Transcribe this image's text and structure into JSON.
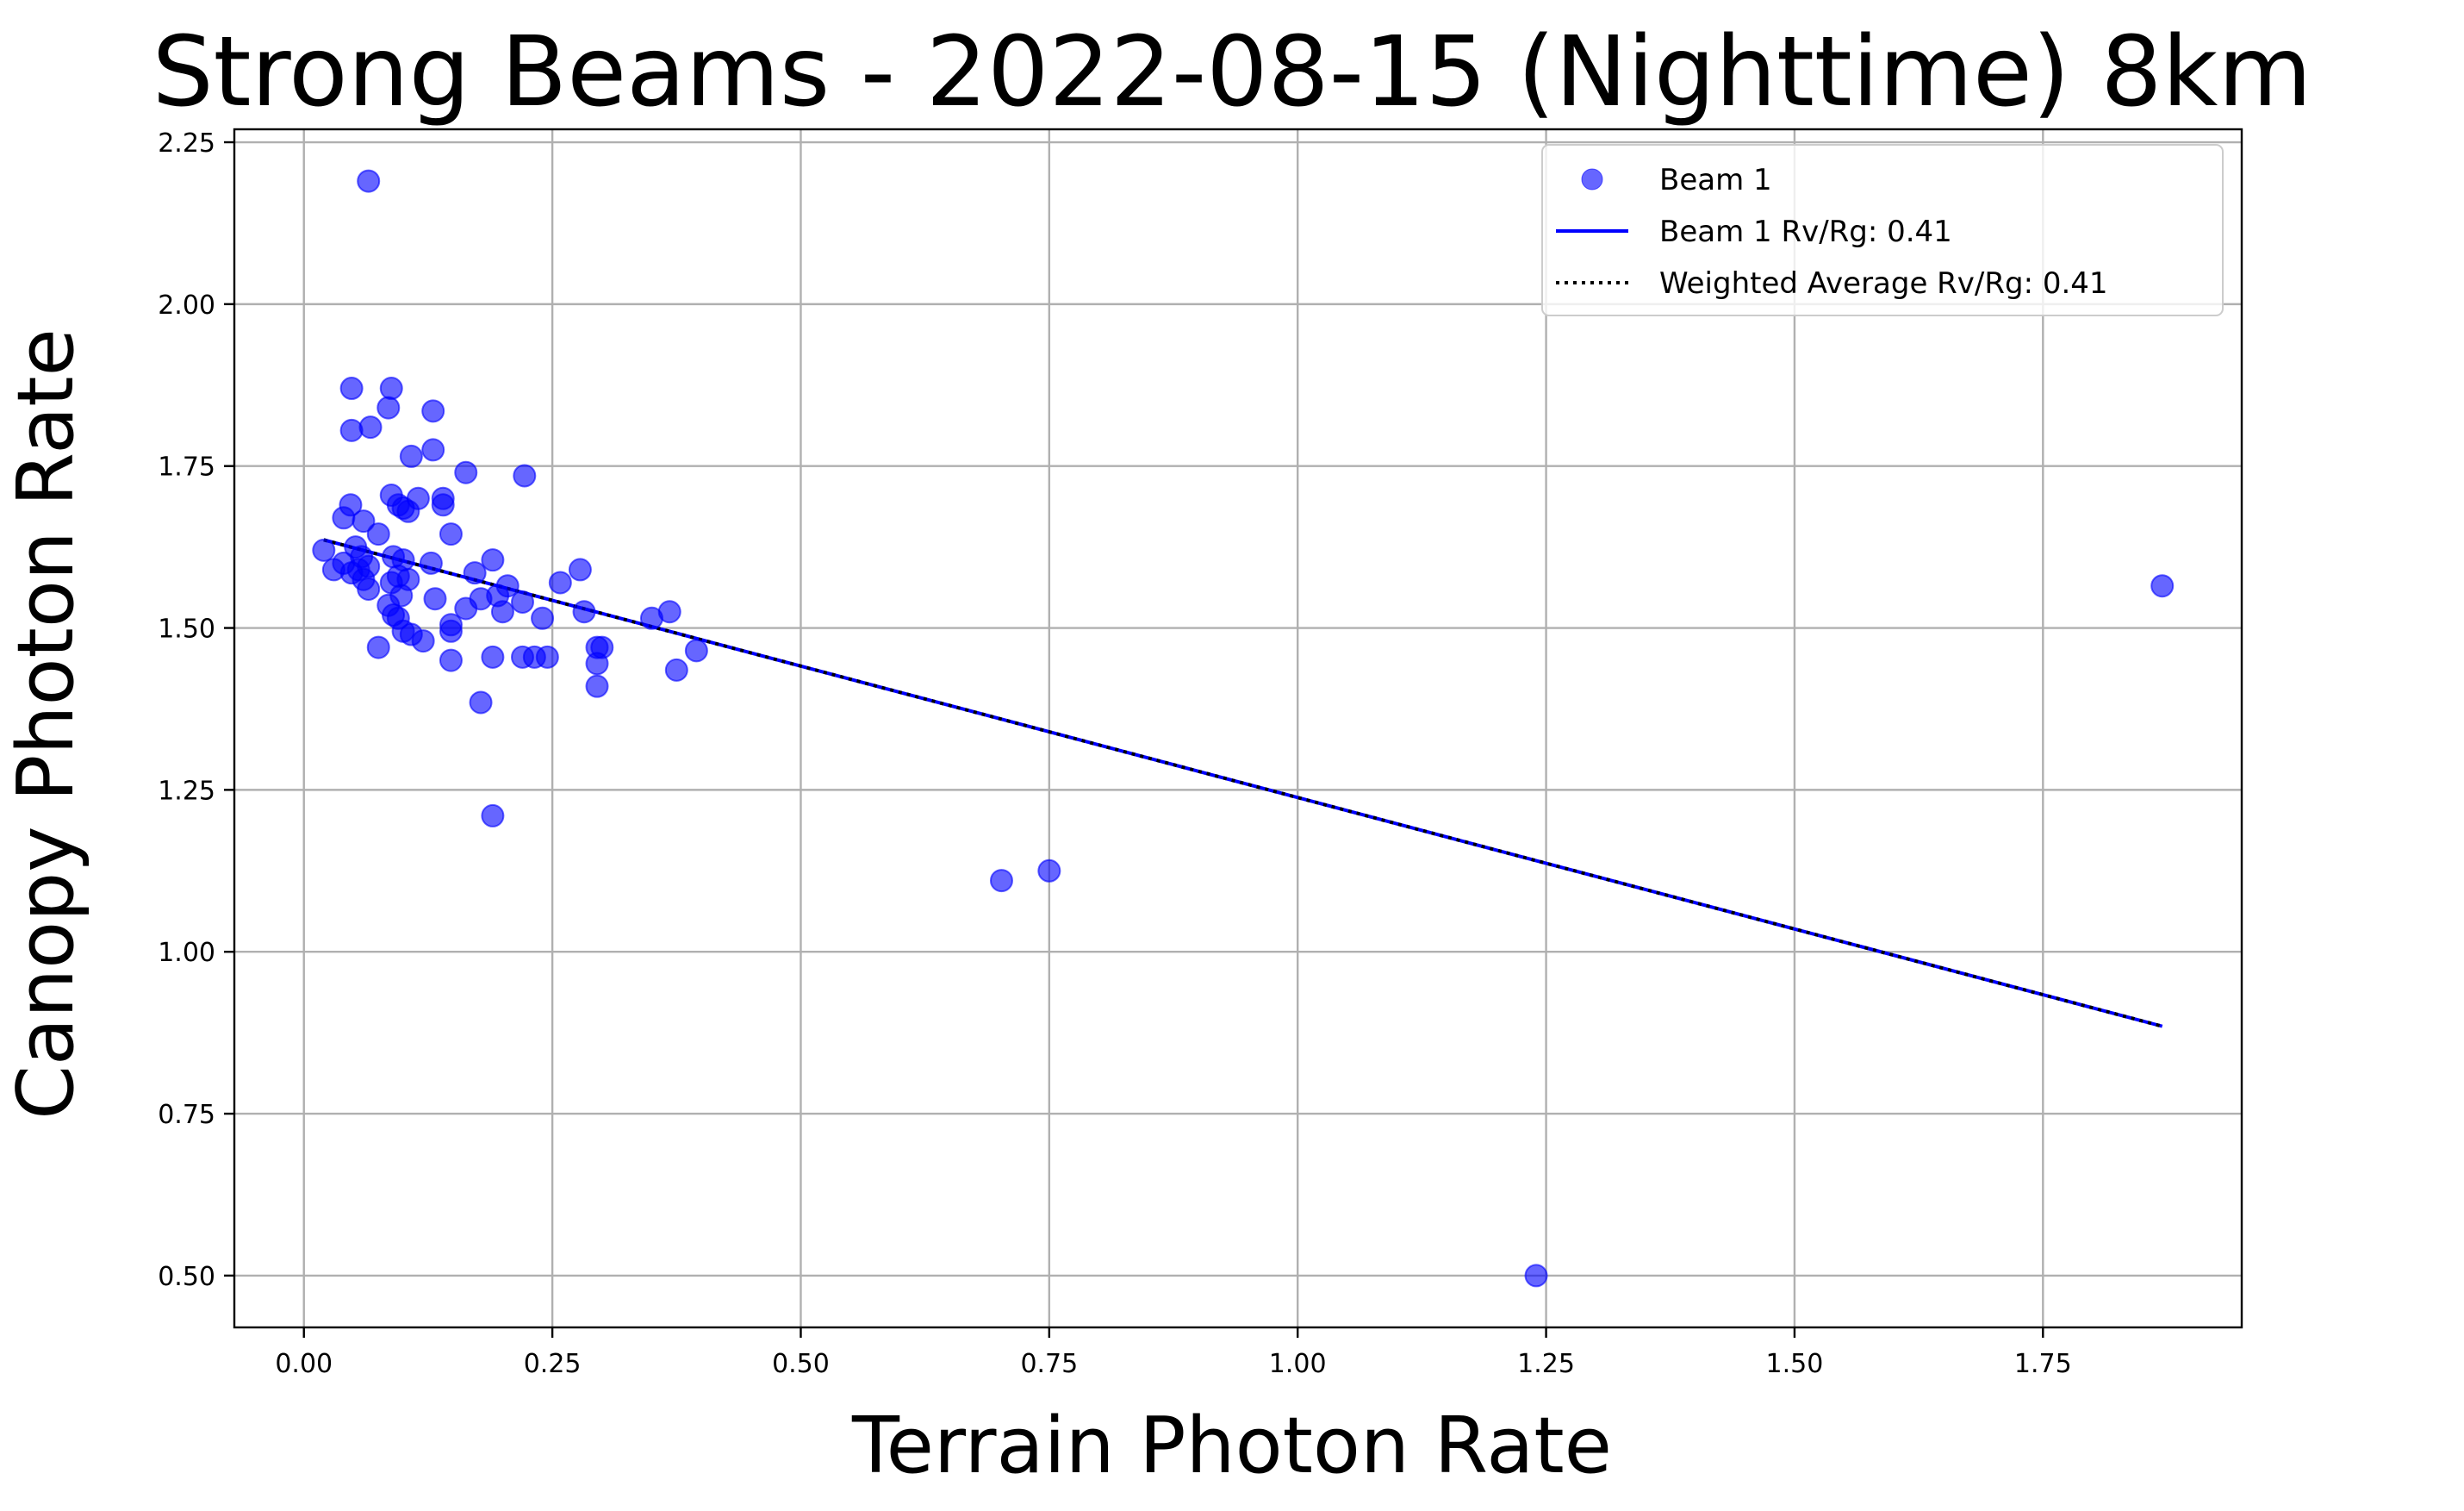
{
  "chart_data": {
    "type": "scatter",
    "title": "Strong Beams - 2022-08-15 (Nighttime) 8km",
    "xlabel": "Terrain Photon Rate",
    "ylabel": "Canopy Photon Rate",
    "xlim": [
      -0.07,
      1.95
    ],
    "ylim": [
      0.42,
      2.27
    ],
    "xticks": [
      0.0,
      0.25,
      0.5,
      0.75,
      1.0,
      1.25,
      1.5,
      1.75
    ],
    "xtick_labels": [
      "0.00",
      "0.25",
      "0.50",
      "0.75",
      "1.00",
      "1.25",
      "1.50",
      "1.75"
    ],
    "yticks": [
      0.5,
      0.75,
      1.0,
      1.25,
      1.5,
      1.75,
      2.0,
      2.25
    ],
    "ytick_labels": [
      "0.50",
      "0.75",
      "1.00",
      "1.25",
      "1.50",
      "1.75",
      "2.00",
      "2.25"
    ],
    "grid": true,
    "legend_position": "top-right",
    "series": [
      {
        "name": "Beam 1",
        "kind": "scatter",
        "color": "#0000ff",
        "points": [
          [
            0.065,
            2.19
          ],
          [
            0.048,
            1.87
          ],
          [
            0.088,
            1.87
          ],
          [
            0.085,
            1.84
          ],
          [
            0.13,
            1.835
          ],
          [
            0.048,
            1.805
          ],
          [
            0.067,
            1.81
          ],
          [
            0.13,
            1.775
          ],
          [
            0.108,
            1.765
          ],
          [
            0.222,
            1.735
          ],
          [
            0.163,
            1.74
          ],
          [
            0.088,
            1.705
          ],
          [
            0.115,
            1.7
          ],
          [
            0.14,
            1.7
          ],
          [
            0.047,
            1.69
          ],
          [
            0.095,
            1.69
          ],
          [
            0.1,
            1.685
          ],
          [
            0.14,
            1.69
          ],
          [
            0.105,
            1.68
          ],
          [
            0.04,
            1.67
          ],
          [
            0.06,
            1.665
          ],
          [
            0.075,
            1.645
          ],
          [
            0.148,
            1.645
          ],
          [
            0.052,
            1.625
          ],
          [
            0.02,
            1.62
          ],
          [
            0.09,
            1.61
          ],
          [
            0.1,
            1.605
          ],
          [
            0.058,
            1.61
          ],
          [
            0.19,
            1.605
          ],
          [
            0.04,
            1.6
          ],
          [
            0.128,
            1.6
          ],
          [
            0.065,
            1.595
          ],
          [
            0.03,
            1.59
          ],
          [
            0.055,
            1.59
          ],
          [
            0.278,
            1.59
          ],
          [
            0.048,
            1.585
          ],
          [
            0.095,
            1.58
          ],
          [
            0.172,
            1.585
          ],
          [
            0.06,
            1.575
          ],
          [
            0.105,
            1.575
          ],
          [
            0.088,
            1.57
          ],
          [
            0.205,
            1.565
          ],
          [
            0.258,
            1.57
          ],
          [
            0.065,
            1.56
          ],
          [
            0.098,
            1.55
          ],
          [
            0.195,
            1.55
          ],
          [
            0.178,
            1.545
          ],
          [
            0.132,
            1.545
          ],
          [
            0.22,
            1.54
          ],
          [
            0.085,
            1.535
          ],
          [
            0.163,
            1.53
          ],
          [
            0.282,
            1.525
          ],
          [
            0.368,
            1.525
          ],
          [
            0.2,
            1.525
          ],
          [
            0.09,
            1.52
          ],
          [
            0.095,
            1.515
          ],
          [
            0.35,
            1.515
          ],
          [
            0.24,
            1.515
          ],
          [
            0.148,
            1.505
          ],
          [
            0.1,
            1.495
          ],
          [
            0.148,
            1.495
          ],
          [
            0.108,
            1.49
          ],
          [
            0.12,
            1.48
          ],
          [
            0.075,
            1.47
          ],
          [
            0.295,
            1.47
          ],
          [
            0.3,
            1.47
          ],
          [
            0.395,
            1.465
          ],
          [
            0.22,
            1.455
          ],
          [
            0.148,
            1.45
          ],
          [
            0.19,
            1.455
          ],
          [
            0.232,
            1.455
          ],
          [
            0.245,
            1.455
          ],
          [
            0.295,
            1.445
          ],
          [
            0.375,
            1.435
          ],
          [
            0.295,
            1.41
          ],
          [
            0.178,
            1.385
          ],
          [
            0.19,
            1.21
          ],
          [
            0.702,
            1.11
          ],
          [
            0.75,
            1.125
          ],
          [
            1.24,
            0.5
          ],
          [
            1.87,
            1.565
          ]
        ]
      },
      {
        "name": "Beam 1 Rv/Rg: 0.41",
        "kind": "line",
        "color": "#0000ff",
        "x": [
          0.02,
          1.87
        ],
        "y": [
          1.636,
          0.885
        ]
      },
      {
        "name": "Weighted Average Rv/Rg: 0.41",
        "kind": "dotted-line",
        "color": "#000000",
        "x": [
          0.02,
          1.87
        ],
        "y": [
          1.636,
          0.885
        ]
      }
    ]
  }
}
